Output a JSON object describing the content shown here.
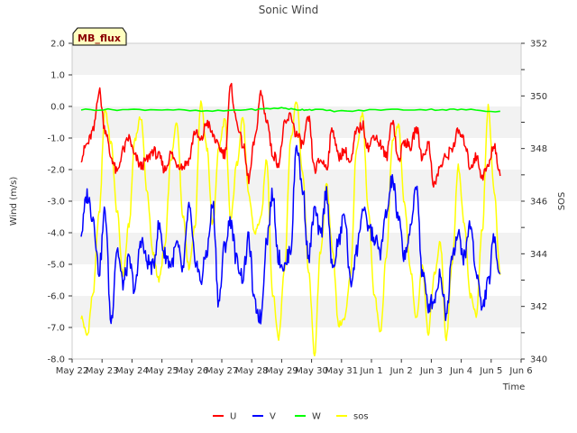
{
  "chart_data": {
    "type": "line",
    "title": "Sonic Wind",
    "badge": "MB_flux",
    "xlabel": "Time",
    "ylabel": "Wind (m/s)",
    "y2label": "SOS",
    "x_ticks": [
      "May 22",
      "May 23",
      "May 24",
      "May 25",
      "May 26",
      "May 27",
      "May 28",
      "May 29",
      "May 30",
      "May 31",
      "Jun 1",
      "Jun 2",
      "Jun 3",
      "Jun 4",
      "Jun 5",
      "Jun 6"
    ],
    "y_ticks": [
      "-8.0",
      "-7.0",
      "-6.0",
      "-5.0",
      "-4.0",
      "-3.0",
      "-2.0",
      "-1.0",
      "0.0",
      "1.0",
      "2.0"
    ],
    "y2_ticks": [
      "340",
      "342",
      "344",
      "346",
      "348",
      "350",
      "352"
    ],
    "xlim": [
      0,
      15
    ],
    "ylim": [
      -8,
      2
    ],
    "y2lim": [
      340,
      352
    ],
    "grid": "horizontal bands",
    "legend_position": "bottom-center",
    "series": [
      {
        "name": "U",
        "axis": "left",
        "color": "#ff0000",
        "x": [
          0.3,
          0.5,
          0.7,
          0.9,
          1.1,
          1.3,
          1.5,
          1.7,
          1.9,
          2.1,
          2.3,
          2.5,
          2.7,
          2.9,
          3.1,
          3.3,
          3.5,
          3.7,
          3.9,
          4.1,
          4.3,
          4.5,
          4.7,
          4.9,
          5.1,
          5.3,
          5.5,
          5.7,
          5.9,
          6.1,
          6.3,
          6.5,
          6.7,
          6.9,
          7.1,
          7.3,
          7.5,
          7.7,
          7.9,
          8.1,
          8.3,
          8.5,
          8.7,
          8.9,
          9.1,
          9.3,
          9.5,
          9.7,
          9.9,
          10.1,
          10.3,
          10.5,
          10.7,
          10.9,
          11.1,
          11.3,
          11.5,
          11.7,
          11.9,
          12.1,
          12.3,
          12.5,
          12.7,
          12.9,
          13.1,
          13.3,
          13.5,
          13.7,
          13.9,
          14.1,
          14.3
        ],
        "values": [
          -1.6,
          -1.2,
          -0.8,
          0.5,
          -0.7,
          -1.6,
          -2.1,
          -1.4,
          -1.0,
          -1.6,
          -1.9,
          -1.7,
          -1.4,
          -1.6,
          -2.0,
          -1.5,
          -1.8,
          -1.9,
          -1.7,
          -0.8,
          -1.1,
          -0.5,
          -0.9,
          -1.3,
          -1.5,
          0.6,
          -0.5,
          -1.2,
          -2.3,
          -1.1,
          0.4,
          -0.4,
          -1.5,
          -1.8,
          -0.6,
          -0.3,
          -0.9,
          -1.2,
          -0.4,
          -2.0,
          -1.7,
          -1.9,
          -0.7,
          -1.6,
          -1.4,
          -1.8,
          -0.8,
          -0.6,
          -1.3,
          -0.9,
          -1.2,
          -1.6,
          -0.4,
          -1.7,
          -1.1,
          -1.3,
          -0.7,
          -1.6,
          -1.2,
          -2.5,
          -1.9,
          -1.6,
          -1.3,
          -0.8,
          -1.1,
          -1.9,
          -1.6,
          -2.2,
          -1.9,
          -1.2,
          -2.2
        ]
      },
      {
        "name": "V",
        "axis": "left",
        "color": "#0000ff",
        "x": [
          0.3,
          0.5,
          0.7,
          0.9,
          1.1,
          1.3,
          1.5,
          1.7,
          1.9,
          2.1,
          2.3,
          2.5,
          2.7,
          2.9,
          3.1,
          3.3,
          3.5,
          3.7,
          3.9,
          4.1,
          4.3,
          4.5,
          4.7,
          4.9,
          5.1,
          5.3,
          5.5,
          5.7,
          5.9,
          6.1,
          6.3,
          6.5,
          6.7,
          6.9,
          7.1,
          7.3,
          7.5,
          7.7,
          7.9,
          8.1,
          8.3,
          8.5,
          8.7,
          8.9,
          9.1,
          9.3,
          9.5,
          9.7,
          9.9,
          10.1,
          10.3,
          10.5,
          10.7,
          10.9,
          11.1,
          11.3,
          11.5,
          11.7,
          11.9,
          12.1,
          12.3,
          12.5,
          12.7,
          12.9,
          13.1,
          13.3,
          13.5,
          13.7,
          13.9,
          14.1,
          14.3
        ],
        "values": [
          -4.0,
          -2.8,
          -3.5,
          -5.2,
          -3.3,
          -6.8,
          -4.5,
          -5.6,
          -4.9,
          -5.8,
          -4.2,
          -4.9,
          -5.1,
          -3.8,
          -4.7,
          -5.0,
          -4.4,
          -5.2,
          -3.2,
          -4.8,
          -5.5,
          -4.6,
          -3.1,
          -6.2,
          -4.4,
          -3.6,
          -4.9,
          -5.4,
          -4.2,
          -6.3,
          -6.7,
          -4.2,
          -2.8,
          -4.8,
          -5.1,
          -4.5,
          -1.2,
          -2.6,
          -4.8,
          -3.3,
          -4.1,
          -2.7,
          -5.2,
          -4.3,
          -3.4,
          -5.6,
          -4.6,
          -3.3,
          -3.8,
          -4.2,
          -4.6,
          -3.4,
          -2.3,
          -3.6,
          -4.7,
          -4.0,
          -2.4,
          -5.3,
          -6.3,
          -6.1,
          -5.3,
          -6.6,
          -4.6,
          -4.1,
          -4.8,
          -3.7,
          -5.2,
          -6.4,
          -5.6,
          -4.2,
          -5.3
        ]
      },
      {
        "name": "W",
        "axis": "left",
        "color": "#00ff00",
        "x": [
          0.3,
          1.5,
          3.0,
          4.5,
          6.0,
          7.0,
          7.5,
          8.0,
          9.0,
          10.5,
          12.0,
          13.0,
          14.3
        ],
        "values": [
          -0.1,
          -0.1,
          -0.1,
          -0.15,
          -0.1,
          -0.05,
          -0.1,
          -0.1,
          -0.15,
          -0.1,
          -0.1,
          -0.1,
          -0.15
        ]
      },
      {
        "name": "sos",
        "axis": "right",
        "color": "#ffff00",
        "x": [
          0.3,
          0.5,
          0.7,
          0.9,
          1.1,
          1.3,
          1.5,
          1.7,
          1.9,
          2.1,
          2.3,
          2.5,
          2.7,
          2.9,
          3.1,
          3.3,
          3.5,
          3.7,
          3.9,
          4.1,
          4.3,
          4.5,
          4.7,
          4.9,
          5.1,
          5.3,
          5.5,
          5.7,
          5.9,
          6.1,
          6.3,
          6.5,
          6.7,
          6.9,
          7.1,
          7.3,
          7.5,
          7.7,
          7.9,
          8.1,
          8.3,
          8.5,
          8.7,
          8.9,
          9.1,
          9.3,
          9.5,
          9.7,
          9.9,
          10.1,
          10.3,
          10.5,
          10.7,
          10.9,
          11.1,
          11.3,
          11.5,
          11.7,
          11.9,
          12.1,
          12.3,
          12.5,
          12.7,
          12.9,
          13.1,
          13.3,
          13.5,
          13.7,
          13.9,
          14.1,
          14.3
        ],
        "values": [
          341.6,
          340.9,
          342.5,
          345.5,
          349.5,
          348.2,
          345.6,
          343.2,
          345.1,
          348.4,
          349.2,
          346.4,
          344.0,
          343.0,
          344.3,
          347.6,
          349.0,
          345.5,
          343.5,
          345.0,
          349.8,
          348.0,
          345.1,
          348.0,
          349.1,
          345.3,
          347.4,
          349.2,
          346.2,
          344.8,
          345.3,
          347.6,
          342.5,
          340.8,
          343.5,
          348.3,
          349.8,
          347.1,
          343.3,
          340.2,
          344.1,
          346.6,
          344.2,
          341.3,
          341.5,
          343.2,
          347.9,
          349.3,
          345.6,
          342.4,
          341.0,
          343.9,
          348.2,
          348.9,
          345.9,
          343.4,
          341.5,
          343.6,
          341.0,
          343.2,
          344.4,
          340.8,
          343.7,
          347.3,
          345.1,
          342.4,
          341.7,
          344.9,
          349.6,
          346.4,
          343.2
        ]
      }
    ]
  }
}
